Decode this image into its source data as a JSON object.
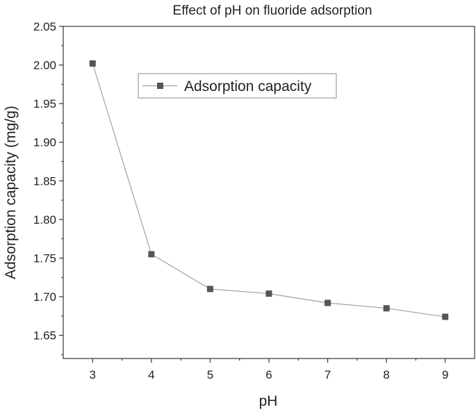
{
  "chart_data": {
    "type": "line",
    "title": "Effect of pH on fluoride adsorption",
    "xlabel": "pH",
    "ylabel": "Adsorption capacity (mg/g)",
    "xlim": [
      2.5,
      9.5
    ],
    "ylim": [
      1.62,
      2.05
    ],
    "xticks": [
      "3",
      "4",
      "5",
      "6",
      "7",
      "8",
      "9"
    ],
    "yticks": [
      "1.65",
      "1.70",
      "1.75",
      "1.80",
      "1.85",
      "1.90",
      "1.95",
      "2.00",
      "2.05"
    ],
    "legend_position": "top-center",
    "grid": false,
    "x": [
      3,
      4,
      5,
      6,
      7,
      8,
      9
    ],
    "series": [
      {
        "name": "Adsorption capacity",
        "values": [
          2.002,
          1.755,
          1.71,
          1.704,
          1.692,
          1.685,
          1.674
        ],
        "line_color": "#a0a0a0",
        "marker_color": "#555555",
        "marker": "square"
      }
    ]
  }
}
